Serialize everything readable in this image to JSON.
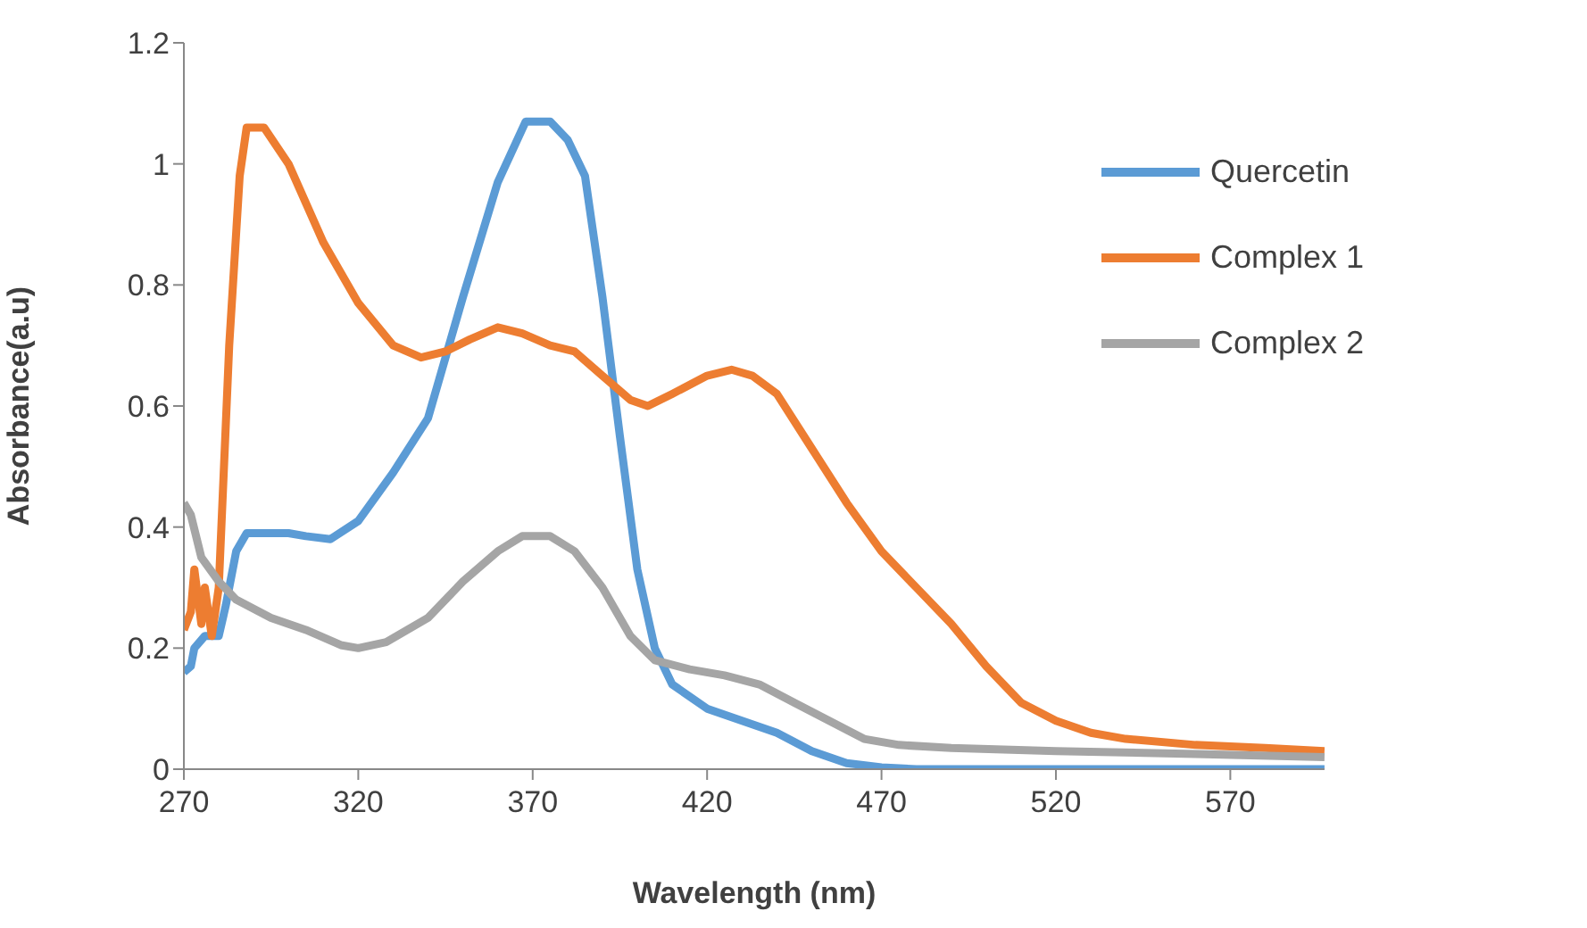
{
  "chart_data": {
    "type": "line",
    "xlabel": "Wavelength (nm)",
    "ylabel": "Absorbance(a.u)",
    "xlim": [
      270,
      597
    ],
    "xticks": [
      270,
      320,
      370,
      420,
      470,
      520,
      570
    ],
    "ylim": [
      0,
      1.2
    ],
    "yticks": [
      0,
      0.2,
      0.4,
      0.6,
      0.8,
      1,
      1.2
    ],
    "legend": "top right",
    "series": [
      {
        "name": "Quercetin",
        "color": "#5b9bd5",
        "x": [
          270,
          272,
          273,
          276,
          280,
          282,
          285,
          288,
          295,
          300,
          305,
          312,
          320,
          330,
          340,
          350,
          360,
          368,
          375,
          380,
          385,
          390,
          395,
          400,
          405,
          410,
          420,
          430,
          440,
          450,
          460,
          470,
          480,
          597
        ],
        "values": [
          0.16,
          0.17,
          0.2,
          0.22,
          0.22,
          0.27,
          0.36,
          0.39,
          0.39,
          0.39,
          0.385,
          0.38,
          0.41,
          0.49,
          0.58,
          0.78,
          0.97,
          1.07,
          1.07,
          1.04,
          0.98,
          0.78,
          0.55,
          0.33,
          0.2,
          0.14,
          0.1,
          0.08,
          0.06,
          0.03,
          0.01,
          0.003,
          0,
          0
        ]
      },
      {
        "name": "Complex 1",
        "color": "#ed7d31",
        "x": [
          270,
          272,
          273,
          275,
          276,
          278,
          280,
          283,
          286,
          288,
          293,
          300,
          310,
          320,
          330,
          338,
          345,
          352,
          360,
          367,
          375,
          382,
          390,
          398,
          403,
          410,
          420,
          427,
          433,
          440,
          450,
          460,
          470,
          480,
          490,
          500,
          510,
          520,
          530,
          540,
          560,
          580,
          597
        ],
        "values": [
          0.23,
          0.26,
          0.33,
          0.24,
          0.3,
          0.22,
          0.3,
          0.7,
          0.98,
          1.06,
          1.06,
          1.0,
          0.87,
          0.77,
          0.7,
          0.68,
          0.69,
          0.71,
          0.73,
          0.72,
          0.7,
          0.69,
          0.65,
          0.61,
          0.6,
          0.62,
          0.65,
          0.66,
          0.65,
          0.62,
          0.53,
          0.44,
          0.36,
          0.3,
          0.24,
          0.17,
          0.11,
          0.08,
          0.06,
          0.05,
          0.04,
          0.035,
          0.03
        ]
      },
      {
        "name": "Complex 2",
        "color": "#a5a5a5",
        "x": [
          270,
          272,
          275,
          280,
          285,
          295,
          305,
          315,
          320,
          328,
          340,
          350,
          360,
          367,
          375,
          382,
          390,
          398,
          405,
          415,
          425,
          435,
          445,
          455,
          465,
          475,
          490,
          520,
          560,
          597
        ],
        "values": [
          0.44,
          0.42,
          0.35,
          0.31,
          0.28,
          0.25,
          0.23,
          0.205,
          0.2,
          0.21,
          0.25,
          0.31,
          0.36,
          0.385,
          0.385,
          0.36,
          0.3,
          0.22,
          0.18,
          0.165,
          0.155,
          0.14,
          0.11,
          0.08,
          0.05,
          0.04,
          0.035,
          0.03,
          0.025,
          0.02
        ]
      }
    ]
  }
}
